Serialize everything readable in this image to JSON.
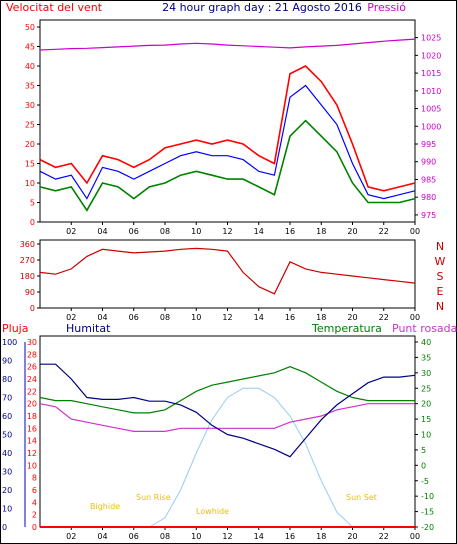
{
  "title": "24 hour graph day : 21 Agosto 2016",
  "colors": {
    "frame": "#000000",
    "wind": "#ff0000",
    "wind_avg": "#0000ff",
    "wind_low": "#008000",
    "pressure": "#cc00cc",
    "direction": "#cc0000",
    "rain": "#ff0000",
    "humidity": "#000080",
    "temperature": "#008000",
    "dewpoint": "#cc33cc",
    "solar": "#99ccee",
    "sun_text": "#e6c200"
  },
  "chart_data": [
    {
      "type": "line",
      "name": "wind-pressure",
      "x_ticks": [
        "02",
        "04",
        "06",
        "08",
        "10",
        "12",
        "14",
        "16",
        "18",
        "20",
        "22",
        "00"
      ],
      "ylabel": "Velocitat del vent",
      "ylabel_right": "Pressió",
      "ylim": [
        0,
        50
      ],
      "y_ticks": [
        0,
        5,
        10,
        15,
        20,
        25,
        30,
        35,
        40,
        45,
        50
      ],
      "y2lim": [
        973,
        1028
      ],
      "y2_ticks": [
        975,
        980,
        985,
        990,
        995,
        1000,
        1005,
        1010,
        1015,
        1020,
        1025
      ],
      "x_hours": [
        0,
        1,
        2,
        3,
        4,
        5,
        6,
        7,
        8,
        9,
        10,
        11,
        12,
        13,
        14,
        15,
        16,
        17,
        18,
        19,
        20,
        21,
        22,
        23,
        24
      ],
      "series": [
        {
          "key": "gust",
          "values": [
            16,
            14,
            15,
            10,
            17,
            16,
            14,
            16,
            19,
            20,
            21,
            20,
            21,
            20,
            17,
            15,
            38,
            40,
            36,
            30,
            20,
            9,
            8,
            9,
            10
          ]
        },
        {
          "key": "avg",
          "values": [
            13,
            11,
            12,
            6,
            14,
            13,
            11,
            13,
            15,
            17,
            18,
            17,
            17,
            16,
            13,
            12,
            32,
            35,
            30,
            25,
            15,
            7,
            6,
            7,
            8
          ]
        },
        {
          "key": "low",
          "values": [
            9,
            8,
            9,
            3,
            10,
            9,
            6,
            9,
            10,
            12,
            13,
            12,
            11,
            11,
            9,
            7,
            22,
            26,
            22,
            18,
            10,
            5,
            5,
            5,
            6
          ]
        },
        {
          "key": "pressure",
          "values": [
            1021.5,
            1021.7,
            1021.9,
            1022.0,
            1022.2,
            1022.4,
            1022.6,
            1022.8,
            1022.9,
            1023.2,
            1023.4,
            1023.2,
            1022.9,
            1022.7,
            1022.5,
            1022.3,
            1022.1,
            1022.4,
            1022.6,
            1022.8,
            1023.2,
            1023.6,
            1024.0,
            1024.3,
            1024.6
          ]
        }
      ]
    },
    {
      "type": "line",
      "name": "wind-direction",
      "x_ticks": [
        "02",
        "04",
        "06",
        "08",
        "10",
        "12",
        "14",
        "16",
        "18",
        "20",
        "22",
        "00"
      ],
      "ylim": [
        0,
        360
      ],
      "y_ticks": [
        0,
        90,
        180,
        270,
        360
      ],
      "compass": [
        "N",
        "W",
        "S",
        "E",
        "N"
      ],
      "x_hours": [
        0,
        1,
        2,
        3,
        4,
        5,
        6,
        7,
        8,
        9,
        10,
        11,
        12,
        13,
        14,
        15,
        16,
        17,
        18,
        19,
        20,
        21,
        22,
        23,
        24
      ],
      "values": [
        200,
        190,
        220,
        290,
        330,
        320,
        310,
        315,
        320,
        330,
        335,
        330,
        320,
        200,
        120,
        80,
        260,
        220,
        200,
        190,
        180,
        170,
        160,
        150,
        140
      ]
    },
    {
      "type": "line",
      "name": "rain-humidity-temperature",
      "x_ticks": [
        "02",
        "04",
        "06",
        "08",
        "10",
        "12",
        "14",
        "16",
        "18",
        "20",
        "22",
        "00"
      ],
      "labels": {
        "rain": "Pluja",
        "humidity": "Humitat",
        "temperature": "Temperatura",
        "dewpoint": "Punt rosada"
      },
      "humidity_ticks": [
        0,
        10,
        20,
        30,
        40,
        50,
        60,
        70,
        80,
        90,
        100
      ],
      "rain_ticks": [
        0,
        2,
        4,
        6,
        8,
        10,
        12,
        14,
        16,
        18,
        20,
        22,
        24,
        26,
        28,
        30
      ],
      "temp_ticks": [
        -20,
        -15,
        -10,
        -5,
        0,
        5,
        10,
        15,
        20,
        25,
        30,
        35,
        40
      ],
      "x_hours": [
        0,
        1,
        2,
        3,
        4,
        5,
        6,
        7,
        8,
        9,
        10,
        11,
        12,
        13,
        14,
        15,
        16,
        17,
        18,
        19,
        20,
        21,
        22,
        23,
        24
      ],
      "series": [
        {
          "key": "humidity",
          "values": [
            88,
            88,
            80,
            70,
            69,
            69,
            70,
            68,
            68,
            66,
            62,
            55,
            50,
            48,
            45,
            42,
            38,
            48,
            58,
            66,
            72,
            78,
            81,
            81,
            82
          ]
        },
        {
          "key": "temperature",
          "values": [
            22,
            21,
            21,
            20,
            19,
            18,
            17,
            17,
            18,
            21,
            24,
            26,
            27,
            28,
            29,
            30,
            32,
            30,
            27,
            24,
            22,
            21,
            21,
            21,
            21
          ]
        },
        {
          "key": "dewpoint",
          "values": [
            20,
            19,
            15,
            14,
            13,
            12,
            11,
            11,
            11,
            12,
            12,
            12,
            12,
            12,
            12,
            12,
            14,
            15,
            16,
            18,
            19,
            20,
            20,
            20,
            20
          ]
        },
        {
          "key": "solar",
          "values": [
            0,
            0,
            0,
            0,
            0,
            0,
            0,
            0,
            5,
            20,
            40,
            58,
            70,
            75,
            75,
            70,
            60,
            45,
            25,
            8,
            0,
            0,
            0,
            0,
            0
          ]
        },
        {
          "key": "rain",
          "values": [
            0,
            0,
            0,
            0,
            0,
            0,
            0,
            0,
            0,
            0,
            0,
            0,
            0,
            0,
            0,
            0,
            0,
            0,
            0,
            0,
            0,
            0,
            0,
            0,
            0
          ]
        }
      ],
      "annotations": {
        "sun_rise": "Sun Rise",
        "sun_set": "Sun Set",
        "bighide": "Bighide",
        "lowhide": "Lowhide"
      }
    }
  ]
}
